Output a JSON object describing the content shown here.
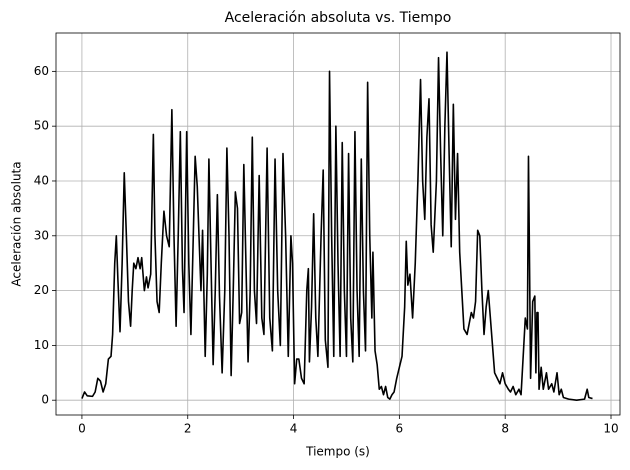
{
  "chart_data": {
    "type": "line",
    "title": "Aceleración absoluta vs. Tiempo",
    "x_label": "Tiempo (s)",
    "y_label": "Aceleración absoluta",
    "color": "#000000",
    "grid": true,
    "xlim": [
      -0.49,
      10.17
    ],
    "ylim": [
      -2.7,
      67
    ],
    "xticks": [
      0,
      2,
      4,
      6,
      8,
      10
    ],
    "yticks": [
      0,
      10,
      20,
      30,
      40,
      50,
      60
    ],
    "x": [
      0.0,
      0.05,
      0.1,
      0.2,
      0.25,
      0.3,
      0.35,
      0.4,
      0.45,
      0.5,
      0.55,
      0.58,
      0.62,
      0.65,
      0.68,
      0.72,
      0.76,
      0.8,
      0.84,
      0.88,
      0.92,
      0.95,
      0.98,
      1.02,
      1.06,
      1.1,
      1.13,
      1.18,
      1.22,
      1.25,
      1.3,
      1.35,
      1.38,
      1.42,
      1.46,
      1.5,
      1.55,
      1.6,
      1.65,
      1.7,
      1.74,
      1.78,
      1.82,
      1.86,
      1.9,
      1.93,
      1.98,
      2.02,
      2.06,
      2.1,
      2.14,
      2.18,
      2.22,
      2.25,
      2.28,
      2.33,
      2.37,
      2.4,
      2.44,
      2.48,
      2.52,
      2.56,
      2.6,
      2.65,
      2.7,
      2.74,
      2.78,
      2.82,
      2.86,
      2.9,
      2.94,
      2.98,
      3.02,
      3.06,
      3.1,
      3.14,
      3.18,
      3.22,
      3.26,
      3.3,
      3.35,
      3.4,
      3.44,
      3.5,
      3.55,
      3.6,
      3.65,
      3.7,
      3.75,
      3.8,
      3.85,
      3.9,
      3.95,
      3.98,
      4.02,
      4.06,
      4.1,
      4.15,
      4.2,
      4.25,
      4.28,
      4.3,
      4.34,
      4.38,
      4.42,
      4.46,
      4.52,
      4.56,
      4.6,
      4.65,
      4.68,
      4.72,
      4.76,
      4.8,
      4.84,
      4.88,
      4.92,
      4.96,
      5.0,
      5.04,
      5.08,
      5.12,
      5.16,
      5.2,
      5.24,
      5.28,
      5.32,
      5.36,
      5.4,
      5.44,
      5.48,
      5.5,
      5.54,
      5.58,
      5.62,
      5.66,
      5.7,
      5.74,
      5.78,
      5.82,
      5.86,
      5.9,
      5.95,
      6.0,
      6.05,
      6.1,
      6.13,
      6.16,
      6.2,
      6.25,
      6.3,
      6.35,
      6.4,
      6.44,
      6.48,
      6.52,
      6.56,
      6.6,
      6.64,
      6.7,
      6.74,
      6.78,
      6.82,
      6.86,
      6.9,
      6.94,
      6.98,
      7.02,
      7.06,
      7.1,
      7.14,
      7.18,
      7.22,
      7.28,
      7.32,
      7.36,
      7.4,
      7.44,
      7.48,
      7.52,
      7.56,
      7.6,
      7.64,
      7.68,
      7.72,
      7.76,
      7.8,
      7.85,
      7.9,
      7.95,
      8.0,
      8.06,
      8.1,
      8.15,
      8.2,
      8.26,
      8.3,
      8.34,
      8.38,
      8.42,
      8.44,
      8.46,
      8.48,
      8.52,
      8.56,
      8.58,
      8.6,
      8.62,
      8.64,
      8.68,
      8.72,
      8.78,
      8.82,
      8.88,
      8.92,
      8.98,
      9.02,
      9.06,
      9.1,
      9.2,
      9.35,
      9.5,
      9.55,
      9.58,
      9.65
    ],
    "values": [
      0.3,
      1.5,
      0.8,
      0.7,
      1.5,
      4,
      3.5,
      1.5,
      3,
      7.5,
      8,
      12,
      25,
      30,
      22,
      12.5,
      25,
      41.5,
      30,
      18,
      13.5,
      20,
      25,
      24,
      26,
      24,
      26,
      20,
      22.5,
      20.5,
      23,
      48.5,
      30,
      18,
      16,
      25,
      34.5,
      30,
      28,
      53,
      30,
      13.5,
      30,
      49,
      24,
      16,
      49,
      25,
      12,
      28,
      44.5,
      39,
      28,
      20,
      31,
      8,
      23,
      44,
      25,
      6.5,
      20,
      37.5,
      19,
      5,
      20,
      46,
      30,
      4.5,
      20,
      38,
      35,
      14,
      16,
      43,
      25,
      7,
      20,
      48,
      20,
      14,
      41,
      15,
      12,
      46,
      15,
      9,
      44,
      20,
      10,
      45,
      30,
      8,
      30,
      25,
      3,
      7.5,
      7.5,
      4,
      3,
      20,
      24,
      7,
      17,
      34,
      15,
      8,
      30,
      42,
      11,
      6,
      60,
      30,
      8,
      50,
      25,
      8,
      47,
      20,
      8,
      45,
      15,
      7,
      49,
      20,
      8,
      44,
      20,
      9,
      58,
      30,
      15,
      27,
      9,
      6.5,
      2,
      2.5,
      1,
      2.5,
      0.5,
      0.2,
      1,
      1.5,
      4,
      6,
      8,
      17,
      29,
      21,
      23,
      15,
      25,
      40,
      58.5,
      40,
      33,
      48,
      55,
      32,
      27,
      40,
      62.5,
      45,
      30,
      50,
      63.5,
      45,
      28,
      54,
      33,
      45,
      27,
      20,
      13,
      12,
      14,
      16,
      15,
      18,
      31,
      30,
      20,
      12,
      17,
      20,
      15,
      10,
      5,
      4,
      3,
      5,
      3,
      2,
      1.5,
      2.5,
      1,
      2,
      1,
      8,
      15,
      13,
      44.5,
      25,
      4,
      18,
      19,
      5,
      16,
      16,
      2,
      6,
      2,
      5,
      2,
      3,
      1.5,
      5,
      1,
      2,
      0.5,
      0.2,
      0,
      0.2,
      2,
      0.5,
      0.3
    ]
  }
}
